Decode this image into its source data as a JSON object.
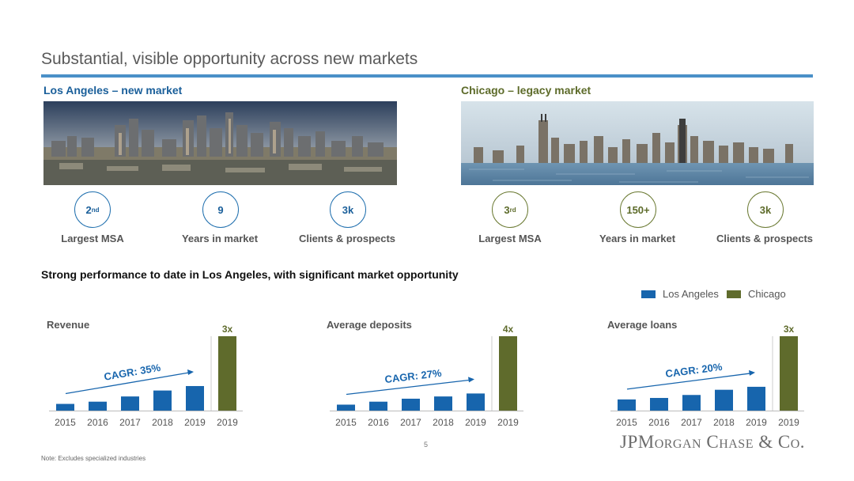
{
  "title": "Substantial, visible opportunity across new markets",
  "colors": {
    "accent_rule": "#4a90c8",
    "los_angeles": "#1765ad",
    "chicago": "#5f6b2c"
  },
  "la": {
    "heading": "Los Angeles – new market",
    "stats": [
      {
        "value": "2",
        "suffix": "nd",
        "label": "Largest MSA"
      },
      {
        "value": "9",
        "suffix": "",
        "label": "Years in market"
      },
      {
        "value": "3k",
        "suffix": "",
        "label": "Clients & prospects"
      }
    ]
  },
  "chicago": {
    "heading": "Chicago – legacy market",
    "stats": [
      {
        "value": "3",
        "suffix": "rd",
        "label": "Largest MSA"
      },
      {
        "value": "150+",
        "suffix": "",
        "label": "Years in market"
      },
      {
        "value": "3k",
        "suffix": "",
        "label": "Clients & prospects"
      }
    ]
  },
  "subheading": "Strong performance to date in Los Angeles, with significant market opportunity",
  "legend": [
    "Los Angeles",
    "Chicago"
  ],
  "chart_data": [
    {
      "type": "bar",
      "title": "Revenue",
      "categories": [
        "2015",
        "2016",
        "2017",
        "2018",
        "2019",
        "2019"
      ],
      "series": [
        {
          "name": "Los Angeles",
          "values": [
            0.09,
            0.12,
            0.19,
            0.27,
            0.33,
            null
          ]
        },
        {
          "name": "Chicago",
          "values": [
            null,
            null,
            null,
            null,
            null,
            1.0
          ]
        }
      ],
      "ylim": [
        0,
        1
      ],
      "multiple_label": "3x",
      "cagr_label": "CAGR: 35%"
    },
    {
      "type": "bar",
      "title": "Average deposits",
      "categories": [
        "2015",
        "2016",
        "2017",
        "2018",
        "2019",
        "2019"
      ],
      "series": [
        {
          "name": "Los Angeles",
          "values": [
            0.08,
            0.12,
            0.16,
            0.19,
            0.23,
            null
          ]
        },
        {
          "name": "Chicago",
          "values": [
            null,
            null,
            null,
            null,
            null,
            1.0
          ]
        }
      ],
      "ylim": [
        0,
        1
      ],
      "multiple_label": "4x",
      "cagr_label": "CAGR: 27%"
    },
    {
      "type": "bar",
      "title": "Average loans",
      "categories": [
        "2015",
        "2016",
        "2017",
        "2018",
        "2019",
        "2019"
      ],
      "series": [
        {
          "name": "Los Angeles",
          "values": [
            0.15,
            0.17,
            0.21,
            0.28,
            0.32,
            null
          ]
        },
        {
          "name": "Chicago",
          "values": [
            null,
            null,
            null,
            null,
            null,
            1.0
          ]
        }
      ],
      "ylim": [
        0,
        1
      ],
      "multiple_label": "3x",
      "cagr_label": "CAGR: 20%"
    }
  ],
  "page_number": "5",
  "note": "Note: Excludes specialized industries",
  "logo": "JPMorgan Chase & Co."
}
